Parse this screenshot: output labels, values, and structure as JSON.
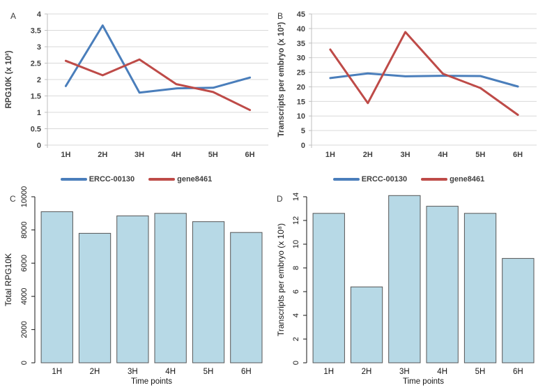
{
  "colors": {
    "series_blue": "#4a7ebb",
    "series_red": "#be4b48",
    "gridline": "#d9d9d9",
    "axis_gray": "#bfbfbf",
    "axis_black": "#141414",
    "bar_fill": "#b7d9e6",
    "bar_border": "#555555"
  },
  "chart_data": [
    {
      "type": "line",
      "panel_label": "A",
      "categories": [
        "1H",
        "2H",
        "3H",
        "4H",
        "5H",
        "6H"
      ],
      "series": [
        {
          "name": "ERCC-00130",
          "color": "#4a7ebb",
          "values": [
            1.8,
            3.65,
            1.6,
            1.73,
            1.75,
            2.06
          ]
        },
        {
          "name": "gene8461",
          "color": "#be4b48",
          "values": [
            2.57,
            2.13,
            2.61,
            1.86,
            1.62,
            1.07
          ]
        }
      ],
      "title": "",
      "xlabel": "",
      "ylabel": "RPG10K (x 10²)",
      "ylim": [
        0,
        4
      ],
      "ystep": 0.5,
      "grid": true,
      "legend_position": "bottom"
    },
    {
      "type": "line",
      "panel_label": "B",
      "categories": [
        "1H",
        "2H",
        "3H",
        "4H",
        "5H",
        "6H"
      ],
      "series": [
        {
          "name": "ERCC-00130",
          "color": "#4a7ebb",
          "values": [
            23.0,
            24.6,
            23.6,
            23.8,
            23.7,
            20.1
          ]
        },
        {
          "name": "gene8461",
          "color": "#be4b48",
          "values": [
            32.8,
            14.4,
            38.8,
            24.5,
            19.6,
            10.4
          ]
        }
      ],
      "title": "",
      "xlabel": "",
      "ylabel": "Transcripts per embryo (x 10³)",
      "ylim": [
        0,
        45
      ],
      "ystep": 5,
      "grid": true,
      "legend_position": "bottom"
    },
    {
      "type": "bar",
      "panel_label": "C",
      "categories": [
        "1H",
        "2H",
        "3H",
        "4H",
        "5H",
        "6H"
      ],
      "values": [
        9100,
        7800,
        8850,
        9000,
        8500,
        7850
      ],
      "title": "",
      "xlabel": "Time points",
      "ylabel": "Total RPG10K",
      "ylim": [
        0,
        10000
      ],
      "ystep": 2000,
      "grid": false,
      "bar_fill": "#b7d9e6",
      "bar_border": "#555555",
      "tick_label_rotation": -90
    },
    {
      "type": "bar",
      "panel_label": "D",
      "categories": [
        "1H",
        "2H",
        "3H",
        "4H",
        "5H",
        "6H"
      ],
      "values": [
        12.6,
        6.4,
        14.1,
        13.2,
        12.6,
        8.8
      ],
      "title": "",
      "xlabel": "Time points",
      "ylabel": "Transcripts per embryo (x 10⁸)",
      "ylim": [
        0,
        14
      ],
      "ystep": 2,
      "grid": false,
      "bar_fill": "#b7d9e6",
      "bar_border": "#555555",
      "tick_label_rotation": -90
    }
  ]
}
